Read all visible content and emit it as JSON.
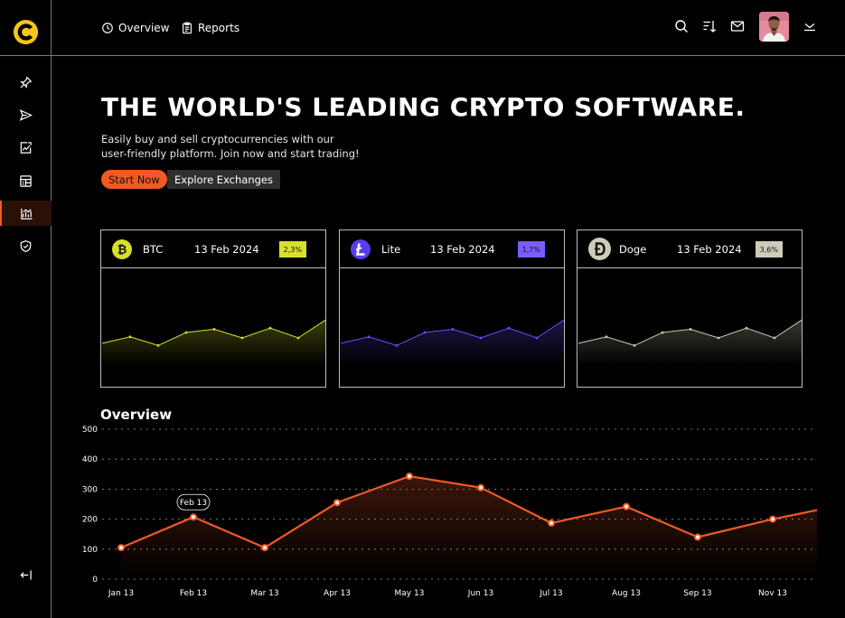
{
  "app": {
    "brand_colors": {
      "accent": "#f15a24",
      "logo_yellow": "#f5c518"
    }
  },
  "sidebar": {
    "items": [
      {
        "icon": "pin-icon"
      },
      {
        "icon": "send-icon"
      },
      {
        "icon": "chart-report-icon"
      },
      {
        "icon": "layout-grid-icon"
      },
      {
        "icon": "analytics-icon",
        "active": true
      },
      {
        "icon": "shield-check-icon"
      }
    ],
    "footer_icon": "collapse-sidebar-icon"
  },
  "topbar": {
    "nav": [
      {
        "label": "Overview",
        "icon": "clock-icon"
      },
      {
        "label": "Reports",
        "icon": "clipboard-icon"
      }
    ],
    "actions": [
      "search-icon",
      "sort-icon",
      "mail-icon",
      "chevron-down-icon"
    ]
  },
  "hero": {
    "title": "THE WORLD'S LEADING CRYPTO SOFTWARE.",
    "subtitle_line1": "Easily buy and sell cryptocurrencies with our",
    "subtitle_line2": "user-friendly platform. Join now and start trading!",
    "primary_button": "Start Now",
    "secondary_button": "Explore Exchanges"
  },
  "coins": [
    {
      "name": "BTC",
      "date": "13 Feb 2024",
      "change": "2,3%",
      "color": "#d8e02c",
      "badge_color": "#d8e02c",
      "icon": "bitcoin-icon",
      "spark": [
        40,
        46,
        38,
        50,
        53,
        45,
        54,
        45,
        62
      ]
    },
    {
      "name": "Lite",
      "date": "13 Feb 2024",
      "change": "1,7%",
      "color": "#6a4dff",
      "badge_color": "#7a5cff",
      "icon": "litecoin-icon",
      "spark": [
        40,
        46,
        38,
        50,
        53,
        45,
        54,
        45,
        62
      ]
    },
    {
      "name": "Doge",
      "date": "13 Feb 2024",
      "change": "3,6%",
      "color": "#cfc9b0",
      "badge_color": "#cfcbb8",
      "icon": "dogecoin-icon",
      "spark": [
        40,
        46,
        38,
        50,
        53,
        45,
        54,
        45,
        62
      ]
    }
  ],
  "overview": {
    "title": "Overview",
    "tooltip_label": "Feb 13",
    "chart_data": {
      "type": "area",
      "categories": [
        "Jan 13",
        "Feb 13",
        "Mar 13",
        "Apr 13",
        "May 13",
        "Jun 13",
        "Jul 13",
        "Aug 13",
        "Sep 13",
        "Nov 13"
      ],
      "values": [
        105,
        207,
        105,
        255,
        343,
        305,
        187,
        242,
        140,
        200
      ],
      "end_value": 230,
      "y_ticks": [
        "0",
        "100",
        "200",
        "300",
        "400",
        "500"
      ],
      "ylim": [
        0,
        500
      ],
      "grid": true,
      "color": "#f15a24"
    }
  }
}
